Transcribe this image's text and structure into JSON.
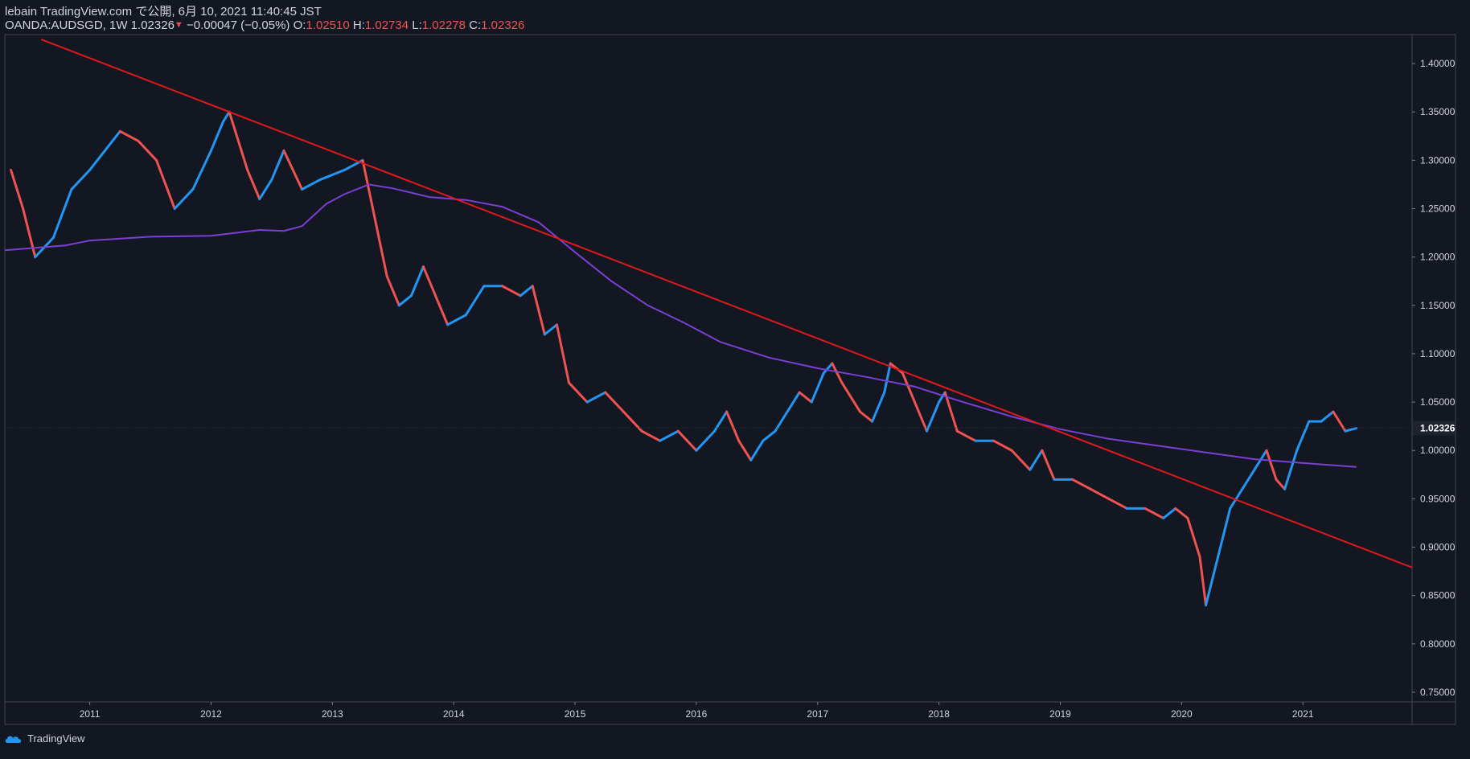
{
  "header": {
    "line1": "lebain TradingView.com で公開, 6月 10, 2021 11:40:45 JST",
    "symbol": "OANDA:AUDSGD, 1W 1.02326",
    "change_arrow": "▼",
    "change": "−0.00047 (−0.05%)",
    "o_label": "O:",
    "o_value": "1.02510",
    "h_label": "H:",
    "h_value": "1.02734",
    "l_label": "L:",
    "l_value": "1.02278",
    "c_label": "C:",
    "c_value": "1.02326"
  },
  "footer": {
    "brand": "TradingView",
    "brand_icon": "tradingview-cloud-icon"
  },
  "colors": {
    "background": "#131722",
    "up": "#2196f3",
    "down": "#ef5350",
    "trendline": "#e0191b",
    "ma": "#7b3fd4",
    "axis_text": "#d1d4dc",
    "last_price_bg": "#1e222d"
  },
  "chart_data": {
    "type": "candlestick",
    "title": "",
    "xlabel": "",
    "ylabel": "",
    "ylim": [
      0.74,
      1.43
    ],
    "xlim": [
      2010.3,
      2021.9
    ],
    "y_ticks": [
      "0.75000",
      "0.80000",
      "0.85000",
      "0.90000",
      "0.95000",
      "1.00000",
      "1.05000",
      "1.10000",
      "1.15000",
      "1.20000",
      "1.25000",
      "1.30000",
      "1.35000",
      "1.40000"
    ],
    "x_ticks": [
      "2011",
      "2012",
      "2013",
      "2014",
      "2015",
      "2016",
      "2017",
      "2018",
      "2019",
      "2020",
      "2021"
    ],
    "last_price": "1.02326",
    "price_path": [
      [
        2010.35,
        1.29
      ],
      [
        2010.45,
        1.25
      ],
      [
        2010.55,
        1.2
      ],
      [
        2010.7,
        1.22
      ],
      [
        2010.85,
        1.27
      ],
      [
        2011.0,
        1.29
      ],
      [
        2011.25,
        1.33
      ],
      [
        2011.4,
        1.32
      ],
      [
        2011.55,
        1.3
      ],
      [
        2011.7,
        1.25
      ],
      [
        2011.85,
        1.27
      ],
      [
        2012.0,
        1.31
      ],
      [
        2012.1,
        1.34
      ],
      [
        2012.15,
        1.35
      ],
      [
        2012.3,
        1.29
      ],
      [
        2012.4,
        1.26
      ],
      [
        2012.5,
        1.28
      ],
      [
        2012.6,
        1.31
      ],
      [
        2012.75,
        1.27
      ],
      [
        2012.9,
        1.28
      ],
      [
        2013.1,
        1.29
      ],
      [
        2013.25,
        1.3
      ],
      [
        2013.35,
        1.24
      ],
      [
        2013.45,
        1.18
      ],
      [
        2013.55,
        1.15
      ],
      [
        2013.65,
        1.16
      ],
      [
        2013.75,
        1.19
      ],
      [
        2013.85,
        1.16
      ],
      [
        2013.95,
        1.13
      ],
      [
        2014.1,
        1.14
      ],
      [
        2014.25,
        1.17
      ],
      [
        2014.4,
        1.17
      ],
      [
        2014.55,
        1.16
      ],
      [
        2014.65,
        1.17
      ],
      [
        2014.75,
        1.12
      ],
      [
        2014.85,
        1.13
      ],
      [
        2014.95,
        1.07
      ],
      [
        2015.1,
        1.05
      ],
      [
        2015.25,
        1.06
      ],
      [
        2015.4,
        1.04
      ],
      [
        2015.55,
        1.02
      ],
      [
        2015.7,
        1.01
      ],
      [
        2015.85,
        1.02
      ],
      [
        2016.0,
        1.0
      ],
      [
        2016.15,
        1.02
      ],
      [
        2016.25,
        1.04
      ],
      [
        2016.35,
        1.01
      ],
      [
        2016.45,
        0.99
      ],
      [
        2016.55,
        1.01
      ],
      [
        2016.65,
        1.02
      ],
      [
        2016.75,
        1.04
      ],
      [
        2016.85,
        1.06
      ],
      [
        2016.95,
        1.05
      ],
      [
        2017.05,
        1.08
      ],
      [
        2017.12,
        1.09
      ],
      [
        2017.2,
        1.07
      ],
      [
        2017.35,
        1.04
      ],
      [
        2017.45,
        1.03
      ],
      [
        2017.55,
        1.06
      ],
      [
        2017.6,
        1.09
      ],
      [
        2017.7,
        1.08
      ],
      [
        2017.8,
        1.05
      ],
      [
        2017.9,
        1.02
      ],
      [
        2018.0,
        1.05
      ],
      [
        2018.05,
        1.06
      ],
      [
        2018.15,
        1.02
      ],
      [
        2018.3,
        1.01
      ],
      [
        2018.45,
        1.01
      ],
      [
        2018.6,
        1.0
      ],
      [
        2018.75,
        0.98
      ],
      [
        2018.85,
        1.0
      ],
      [
        2018.95,
        0.97
      ],
      [
        2019.1,
        0.97
      ],
      [
        2019.25,
        0.96
      ],
      [
        2019.4,
        0.95
      ],
      [
        2019.55,
        0.94
      ],
      [
        2019.7,
        0.94
      ],
      [
        2019.85,
        0.93
      ],
      [
        2019.95,
        0.94
      ],
      [
        2020.05,
        0.93
      ],
      [
        2020.15,
        0.89
      ],
      [
        2020.2,
        0.84
      ],
      [
        2020.3,
        0.89
      ],
      [
        2020.4,
        0.94
      ],
      [
        2020.5,
        0.96
      ],
      [
        2020.6,
        0.98
      ],
      [
        2020.7,
        1.0
      ],
      [
        2020.78,
        0.97
      ],
      [
        2020.85,
        0.96
      ],
      [
        2020.95,
        1.0
      ],
      [
        2021.05,
        1.03
      ],
      [
        2021.15,
        1.03
      ],
      [
        2021.25,
        1.04
      ],
      [
        2021.35,
        1.02
      ],
      [
        2021.44,
        1.023
      ]
    ],
    "moving_average": {
      "color": "#7b3fd4",
      "points": [
        [
          2010.3,
          1.207
        ],
        [
          2010.8,
          1.212
        ],
        [
          2011.0,
          1.217
        ],
        [
          2011.5,
          1.221
        ],
        [
          2012.0,
          1.222
        ],
        [
          2012.4,
          1.228
        ],
        [
          2012.6,
          1.227
        ],
        [
          2012.75,
          1.232
        ],
        [
          2012.95,
          1.255
        ],
        [
          2013.1,
          1.265
        ],
        [
          2013.3,
          1.275
        ],
        [
          2013.5,
          1.271
        ],
        [
          2013.8,
          1.262
        ],
        [
          2014.1,
          1.259
        ],
        [
          2014.4,
          1.252
        ],
        [
          2014.7,
          1.236
        ],
        [
          2015.0,
          1.205
        ],
        [
          2015.3,
          1.175
        ],
        [
          2015.6,
          1.15
        ],
        [
          2015.9,
          1.132
        ],
        [
          2016.2,
          1.112
        ],
        [
          2016.6,
          1.096
        ],
        [
          2017.0,
          1.085
        ],
        [
          2017.4,
          1.076
        ],
        [
          2017.8,
          1.066
        ],
        [
          2018.2,
          1.05
        ],
        [
          2018.6,
          1.035
        ],
        [
          2019.0,
          1.022
        ],
        [
          2019.4,
          1.012
        ],
        [
          2019.8,
          1.005
        ],
        [
          2020.2,
          0.998
        ],
        [
          2020.6,
          0.991
        ],
        [
          2021.0,
          0.987
        ],
        [
          2021.44,
          0.983
        ]
      ]
    },
    "trendline": {
      "color": "#e0191b",
      "start": [
        2010.6,
        1.425
      ],
      "end": [
        2021.9,
        0.879
      ]
    }
  }
}
